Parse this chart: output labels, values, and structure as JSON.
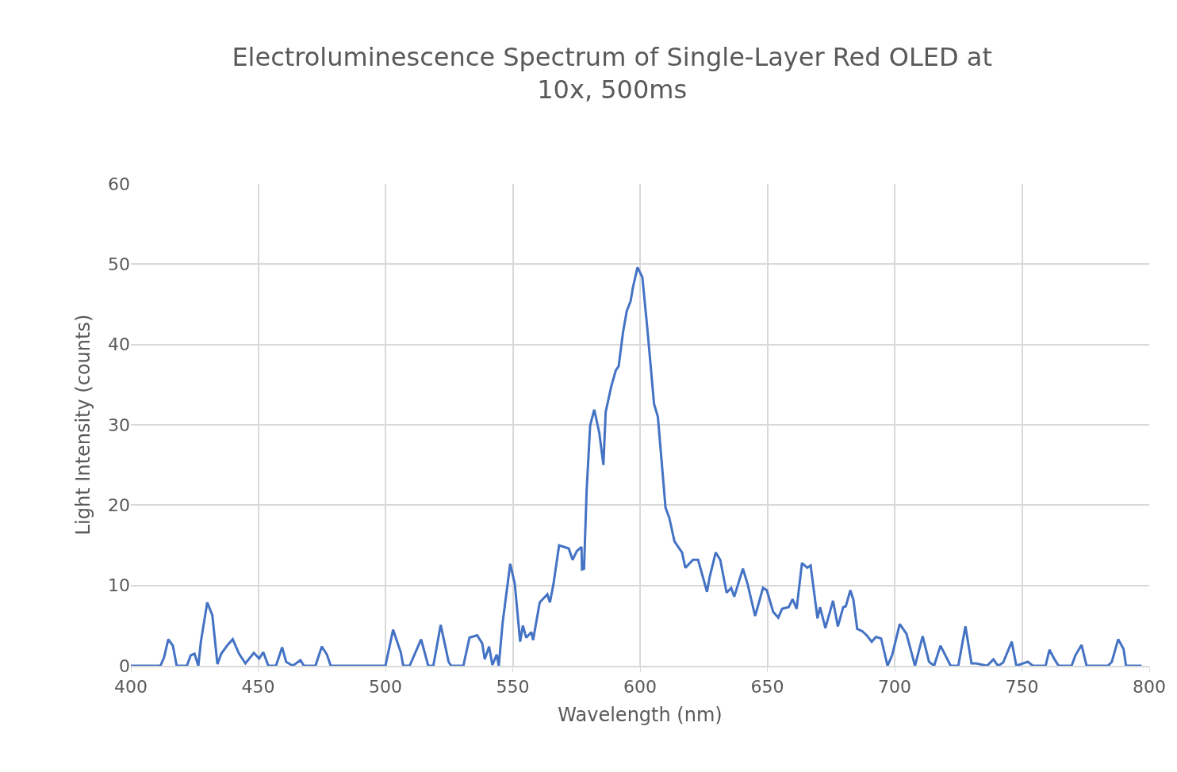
{
  "chart_data": {
    "type": "line",
    "title": "Electroluminescence Spectrum of Single-Layer Red OLED at 10x, 500ms",
    "xlabel": "Wavelength (nm)",
    "ylabel": "Light Intensity (counts)",
    "xlim": [
      400,
      800
    ],
    "xticks": [
      400,
      450,
      500,
      550,
      600,
      650,
      700,
      750,
      800
    ],
    "ylim": [
      0,
      60
    ],
    "yticks": [
      0,
      10,
      20,
      30,
      40,
      50,
      60
    ],
    "grid": true,
    "marker": "none",
    "line_style": "solid",
    "series": [
      {
        "color": "#4472c4",
        "x": [
          400,
          411.6,
          413,
          414.7,
          416.5,
          418,
          422,
          423.5,
          425,
          426.5,
          427.5,
          430,
          432,
          434,
          435.5,
          438,
          440,
          442.5,
          445,
          448.3,
          450.4,
          452,
          454,
          457,
          459.4,
          461,
          463.6,
          466.6,
          468,
          472.5,
          475,
          477,
          478.5,
          500,
          503,
          506,
          507,
          509.5,
          514,
          516.8,
          518.8,
          521.7,
          524.8,
          525.8,
          530.6,
          533,
          536,
          538,
          539,
          540.7,
          542,
          543.7,
          544.5,
          546,
          549,
          550.8,
          552.9,
          554,
          555.3,
          557.3,
          558,
          560.6,
          563.6,
          564.6,
          566,
          568.2,
          572,
          573.5,
          575.2,
          577,
          577.2,
          578,
          579,
          580.4,
          582,
          584,
          585.6,
          586.5,
          588.7,
          590.5,
          591.6,
          593.3,
          594.8,
          596.3,
          597.2,
          599,
          600.9,
          602.8,
          605.5,
          607,
          610,
          611.5,
          613.5,
          616.5,
          617.8,
          620.8,
          622.8,
          626.3,
          627.3,
          629.7,
          631.5,
          634,
          635.8,
          637,
          640.4,
          642.3,
          645.2,
          648.3,
          649.8,
          652.3,
          654.3,
          655.8,
          658.4,
          659.9,
          661.5,
          663.6,
          665.7,
          667,
          669.7,
          670.7,
          672.8,
          675.8,
          677.7,
          679.8,
          680.8,
          682.6,
          683.8,
          685.3,
          687.3,
          689,
          691,
          692.7,
          694.7,
          697.2,
          699,
          702,
          704.6,
          708,
          711,
          713.5,
          715.5,
          718,
          722,
          725,
          727.8,
          730.2,
          732,
          736.3,
          738.8,
          740.6,
          742.6,
          746,
          747.8,
          752.3,
          754.3,
          759.3,
          760.8,
          762.8,
          764.4,
          769.5,
          771,
          773.4,
          775.4,
          783.8,
          785.3,
          787.8,
          789.9,
          790.9,
          797
        ],
        "values": [
          0,
          0,
          1,
          3.3,
          2.5,
          0,
          0,
          1.3,
          1.5,
          0,
          3,
          7.9,
          6.3,
          0.2,
          1.5,
          2.6,
          3.3,
          1.5,
          0.3,
          1.6,
          0.9,
          1.7,
          0,
          0,
          2.3,
          0.5,
          0,
          0.7,
          0,
          0,
          2.4,
          1.4,
          0,
          0,
          4.5,
          1.7,
          0,
          0,
          3.3,
          0,
          0,
          5.1,
          0.5,
          0,
          0,
          3.5,
          3.8,
          2.8,
          0.8,
          2.4,
          0.1,
          1.4,
          0,
          5.3,
          12.7,
          10.2,
          3,
          5,
          3.5,
          4.2,
          3.2,
          7.9,
          8.9,
          7.9,
          10.2,
          15,
          14.6,
          13.2,
          14.3,
          14.8,
          12,
          12.1,
          21.7,
          29.9,
          31.9,
          29,
          25,
          31.6,
          34.8,
          36.8,
          37.3,
          41.5,
          44.2,
          45.4,
          47.1,
          49.6,
          48.4,
          42.2,
          32.6,
          31,
          19.7,
          18.4,
          15.5,
          14.1,
          12.2,
          13.2,
          13.2,
          9.2,
          11,
          14.1,
          13.2,
          9.1,
          9.7,
          8.6,
          12.1,
          10.1,
          6.2,
          9.7,
          9.4,
          6.7,
          6,
          7.1,
          7.3,
          8.3,
          7.1,
          12.8,
          12.2,
          12.5,
          5.9,
          7.3,
          4.7,
          8.1,
          4.9,
          7.3,
          7.4,
          9.4,
          8.2,
          4.6,
          4.3,
          3.8,
          3,
          3.6,
          3.4,
          0,
          1.3,
          5.2,
          4,
          0,
          3.7,
          0.5,
          0,
          2.5,
          0,
          0,
          4.9,
          0.3,
          0.3,
          0,
          0.8,
          0,
          0.4,
          3,
          0,
          0.5,
          0,
          0,
          2,
          0.8,
          0,
          0,
          1.3,
          2.6,
          0,
          0,
          0.5,
          3.3,
          2.1,
          0,
          0
        ]
      }
    ]
  }
}
